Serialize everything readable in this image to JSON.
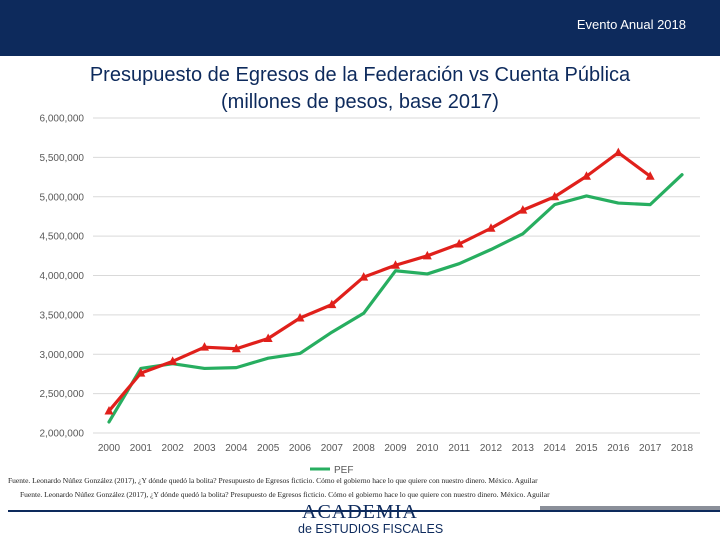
{
  "header": {
    "event_label": "Evento Anual 2018"
  },
  "slide": {
    "title_line1": "Presupuesto de Egresos de la Federación vs Cuenta Pública",
    "title_line2": "(millones de pesos, base 2017)"
  },
  "chart_data": {
    "type": "line",
    "x": [
      "2000",
      "2001",
      "2002",
      "2003",
      "2004",
      "2005",
      "2006",
      "2007",
      "2008",
      "2009",
      "2010",
      "2011",
      "2012",
      "2013",
      "2014",
      "2015",
      "2016",
      "2017",
      "2018"
    ],
    "ylim": [
      2000000,
      6000000
    ],
    "yticks": [
      "2,000,000",
      "2,500,000",
      "3,000,000",
      "3,500,000",
      "4,000,000",
      "4,500,000",
      "5,000,000",
      "5,500,000",
      "6,000,000"
    ],
    "grid": true,
    "legend_position": "bottom",
    "colors": {
      "pef": "#27ae60",
      "cuenta_publica": "#e0201b"
    },
    "series": [
      {
        "name": "PEF",
        "values": [
          2140000,
          2820000,
          2880000,
          2820000,
          2830000,
          2950000,
          3010000,
          3280000,
          3520000,
          4060000,
          4020000,
          4150000,
          4330000,
          4530000,
          4900000,
          5010000,
          4920000,
          4900000,
          5280000
        ]
      },
      {
        "name": "",
        "values": [
          2280000,
          2760000,
          2910000,
          3090000,
          3070000,
          3200000,
          3460000,
          3630000,
          3980000,
          4130000,
          4250000,
          4400000,
          4600000,
          4830000,
          5000000,
          5260000,
          5560000,
          5260000,
          null
        ]
      }
    ]
  },
  "source": {
    "line1": "Fuente. Leonardo Núñez González (2017), ¿Y dónde quedó la bolita? Presupuesto de Egresos ficticio. Cómo el gobierno hace lo que quiere con nuestro dinero. México. Aguilar",
    "line2": "Fuente. Leonardo Núñez González (2017), ¿Y dónde quedó la bolita? Presupuesto de Egresos ficticio. Cómo el gobierno hace lo que quiere con nuestro dinero. México. Aguilar"
  },
  "logo": {
    "top_text": "ACADEMIA",
    "bottom_text": "de ESTUDIOS FISCALES"
  }
}
